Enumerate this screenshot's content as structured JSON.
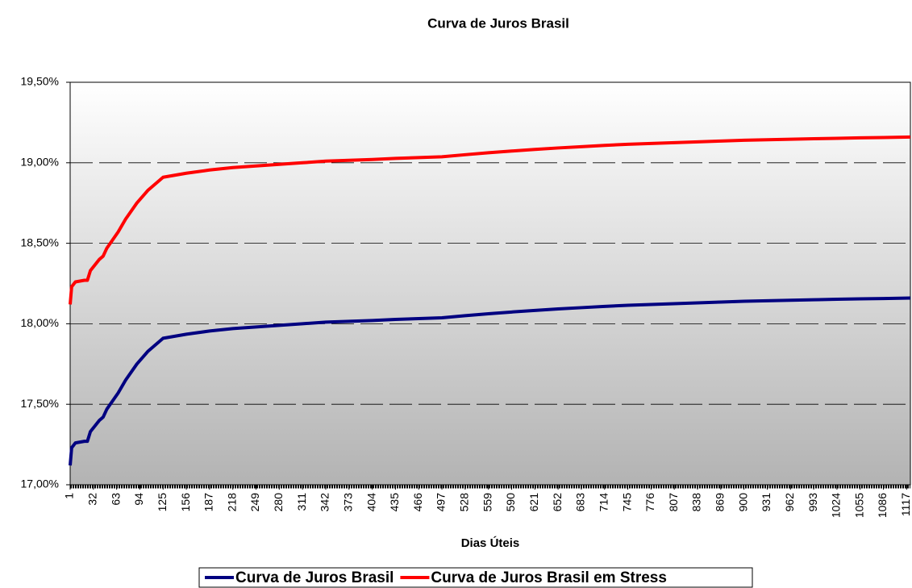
{
  "chart_data": {
    "type": "line",
    "title": "Curva de Juros Brasil",
    "x_label": "Dias Úteis",
    "x": [
      1,
      3,
      8,
      20,
      24,
      28,
      40,
      45,
      50,
      65,
      75,
      90,
      105,
      125,
      156,
      187,
      218,
      249,
      280,
      311,
      342,
      373,
      404,
      435,
      466,
      497,
      528,
      559,
      590,
      621,
      652,
      683,
      714,
      745,
      776,
      807,
      838,
      869,
      900,
      931,
      962,
      993,
      1024,
      1055,
      1086,
      1122
    ],
    "series": [
      {
        "name": "Curva de Juros Brasil",
        "color": "#000080",
        "values": [
          17.12,
          17.23,
          17.26,
          17.27,
          17.27,
          17.33,
          17.4,
          17.42,
          17.47,
          17.57,
          17.65,
          17.75,
          17.83,
          17.91,
          17.935,
          17.955,
          17.97,
          17.98,
          17.99,
          18.0,
          18.01,
          18.015,
          18.02,
          18.027,
          18.032,
          18.037,
          18.05,
          18.062,
          18.073,
          18.083,
          18.092,
          18.1,
          18.108,
          18.115,
          18.12,
          18.125,
          18.13,
          18.135,
          18.14,
          18.143,
          18.146,
          18.149,
          18.152,
          18.155,
          18.157,
          18.16
        ]
      },
      {
        "name": "Curva de Juros Brasil em Stress",
        "color": "#ff0000",
        "values": [
          18.12,
          18.23,
          18.26,
          18.27,
          18.27,
          18.33,
          18.4,
          18.42,
          18.47,
          18.57,
          18.65,
          18.75,
          18.83,
          18.91,
          18.935,
          18.955,
          18.97,
          18.98,
          18.99,
          19.0,
          19.01,
          19.015,
          19.02,
          19.027,
          19.032,
          19.037,
          19.05,
          19.062,
          19.073,
          19.083,
          19.092,
          19.1,
          19.108,
          19.115,
          19.12,
          19.125,
          19.13,
          19.135,
          19.14,
          19.143,
          19.146,
          19.149,
          19.152,
          19.155,
          19.157,
          19.16
        ]
      }
    ],
    "xlim": [
      1,
      1122
    ],
    "xticks": [
      1,
      32,
      63,
      94,
      125,
      156,
      187,
      218,
      249,
      280,
      311,
      342,
      373,
      404,
      435,
      466,
      497,
      528,
      559,
      590,
      621,
      652,
      683,
      714,
      745,
      776,
      807,
      838,
      869,
      900,
      931,
      962,
      993,
      1024,
      1055,
      1086,
      1117
    ],
    "ylim": [
      17,
      19.5
    ],
    "yticks": [
      {
        "value": 17,
        "label": "17,00%"
      },
      {
        "value": 17.5,
        "label": "17,50%"
      },
      {
        "value": 18,
        "label": "18,00%"
      },
      {
        "value": 18.5,
        "label": "18,50%"
      },
      {
        "value": 19,
        "label": "19,00%"
      },
      {
        "value": 19.5,
        "label": "19,50%"
      }
    ],
    "grid": true,
    "legend": "bottom"
  }
}
